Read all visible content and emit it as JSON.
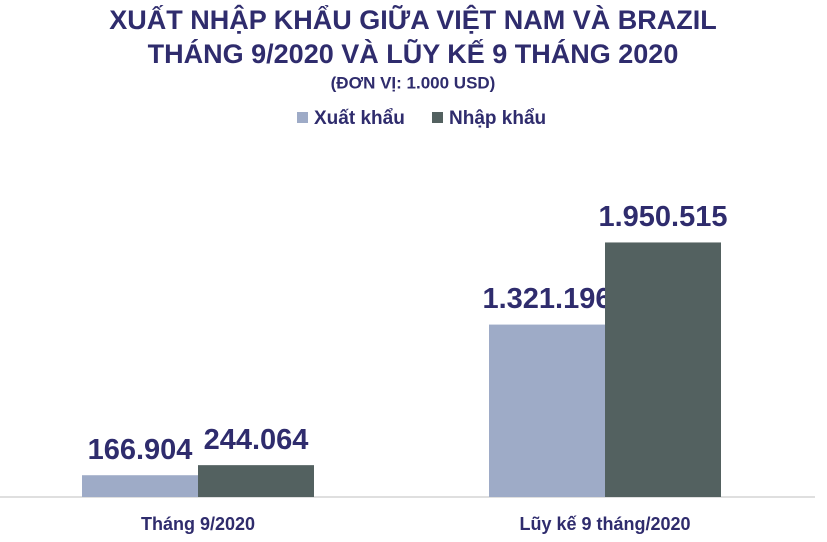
{
  "chart_data": {
    "type": "bar",
    "title": "XUẤT NHẬP KHẨU GIỮA VIỆT NAM VÀ BRAZIL",
    "subtitle": "THÁNG 9/2020 VÀ LŨY KẾ 9 THÁNG 2020",
    "unit": "(ĐƠN VỊ: 1.000 USD)",
    "categories": [
      "Tháng 9/2020",
      "Lũy kế 9 tháng/2020"
    ],
    "series": [
      {
        "name": "Xuất khẩu",
        "color": "#9eabc7",
        "values": [
          166904,
          1321196
        ],
        "value_labels": [
          "166.904",
          "1.321.196"
        ]
      },
      {
        "name": "Nhập khẩu",
        "color": "#536160",
        "values": [
          244064,
          1950515
        ],
        "value_labels": [
          "244.064",
          "1.950.515"
        ]
      }
    ],
    "ylim": [
      0,
      2000000
    ]
  }
}
